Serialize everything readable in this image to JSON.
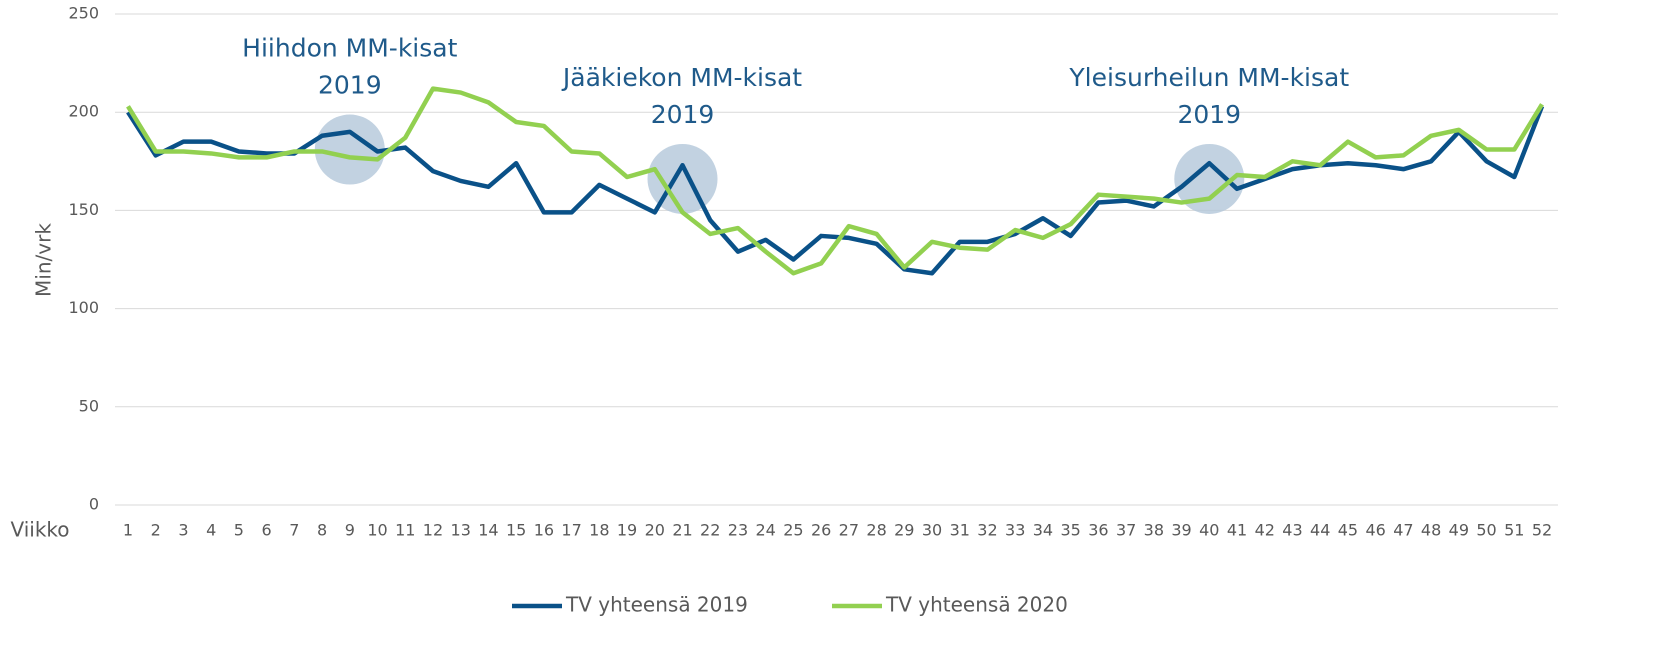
{
  "chart_data": {
    "type": "line",
    "x_label": "Viikko",
    "y_label": "Min/vrk",
    "categories": [
      1,
      2,
      3,
      4,
      5,
      6,
      7,
      8,
      9,
      10,
      11,
      12,
      13,
      14,
      15,
      16,
      17,
      18,
      19,
      20,
      21,
      22,
      23,
      24,
      25,
      26,
      27,
      28,
      29,
      30,
      31,
      32,
      33,
      34,
      35,
      36,
      37,
      38,
      39,
      40,
      41,
      42,
      43,
      44,
      45,
      46,
      47,
      48,
      49,
      50,
      51,
      52
    ],
    "ylim": [
      0,
      250
    ],
    "yticks": [
      0,
      50,
      100,
      150,
      200,
      250
    ],
    "grid": true,
    "legend": "bottom",
    "series": [
      {
        "name": "TV yhteensä 2019",
        "color": "#0a5188",
        "values": [
          200,
          178,
          185,
          185,
          180,
          179,
          179,
          188,
          190,
          180,
          182,
          170,
          165,
          162,
          174,
          149,
          149,
          163,
          156,
          149,
          173,
          145,
          129,
          135,
          125,
          137,
          136,
          133,
          120,
          118,
          134,
          134,
          138,
          146,
          137,
          154,
          155,
          152,
          162,
          174,
          161,
          166,
          171,
          173,
          174,
          173,
          171,
          175,
          190,
          175,
          167,
          203
        ]
      },
      {
        "name": "TV yhteensä 2020",
        "color": "#92d050",
        "values": [
          203,
          180,
          180,
          179,
          177,
          177,
          180,
          180,
          177,
          176,
          187,
          212,
          210,
          205,
          195,
          193,
          180,
          179,
          167,
          171,
          149,
          138,
          141,
          129,
          118,
          123,
          142,
          138,
          121,
          134,
          131,
          130,
          140,
          136,
          143,
          158,
          157,
          156,
          154,
          156,
          168,
          167,
          175,
          173,
          185,
          177,
          178,
          188,
          191,
          181,
          181,
          204
        ]
      }
    ],
    "annotations": [
      {
        "lines": [
          "Hiihdon MM-kisat",
          "2019"
        ],
        "x": 9,
        "y": 181
      },
      {
        "lines": [
          "Jääkiekon MM-kisat",
          "2019"
        ],
        "x": 21,
        "y": 166
      },
      {
        "lines": [
          "Yleisurheilun MM-kisat",
          "2019"
        ],
        "x": 40,
        "y": 166
      }
    ]
  }
}
